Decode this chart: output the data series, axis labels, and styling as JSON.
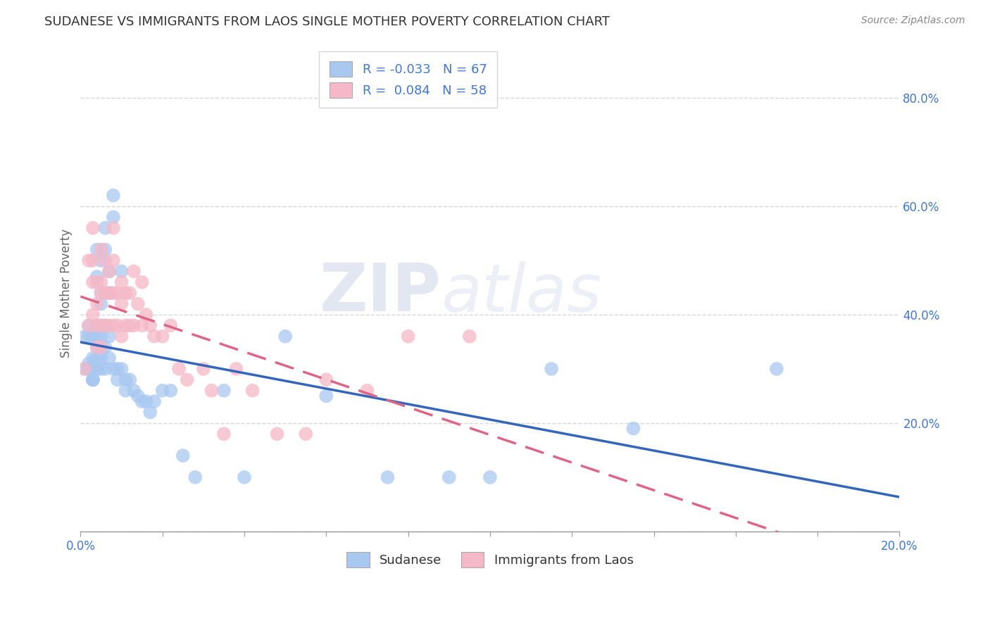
{
  "title": "SUDANESE VS IMMIGRANTS FROM LAOS SINGLE MOTHER POVERTY CORRELATION CHART",
  "source": "Source: ZipAtlas.com",
  "ylabel": "Single Mother Poverty",
  "legend_label_1": "Sudanese",
  "legend_label_2": "Immigrants from Laos",
  "R1": -0.033,
  "N1": 67,
  "R2": 0.084,
  "N2": 58,
  "color_blue": "#a8c8f0",
  "color_pink": "#f4b8c8",
  "color_line_blue": "#3366bb",
  "color_line_pink": "#dd6688",
  "watermark_zip": "ZIP",
  "watermark_atlas": "atlas",
  "background_color": "#ffffff",
  "grid_color": "#cccccc",
  "title_color": "#333333",
  "axis_label_color": "#4477cc",
  "x_min": 0.0,
  "x_max": 0.2,
  "y_min": 0.0,
  "y_max": 0.88,
  "sudanese_x": [
    0.001,
    0.001,
    0.002,
    0.002,
    0.002,
    0.002,
    0.003,
    0.003,
    0.003,
    0.003,
    0.003,
    0.003,
    0.003,
    0.004,
    0.004,
    0.004,
    0.004,
    0.004,
    0.004,
    0.004,
    0.005,
    0.005,
    0.005,
    0.005,
    0.005,
    0.005,
    0.005,
    0.005,
    0.006,
    0.006,
    0.006,
    0.006,
    0.006,
    0.007,
    0.007,
    0.007,
    0.007,
    0.008,
    0.008,
    0.008,
    0.009,
    0.009,
    0.01,
    0.01,
    0.011,
    0.011,
    0.012,
    0.013,
    0.014,
    0.015,
    0.016,
    0.017,
    0.018,
    0.02,
    0.022,
    0.025,
    0.028,
    0.035,
    0.04,
    0.05,
    0.06,
    0.075,
    0.09,
    0.1,
    0.115,
    0.135,
    0.17
  ],
  "sudanese_y": [
    0.36,
    0.3,
    0.38,
    0.3,
    0.36,
    0.31,
    0.36,
    0.32,
    0.3,
    0.28,
    0.28,
    0.3,
    0.28,
    0.52,
    0.47,
    0.38,
    0.36,
    0.34,
    0.32,
    0.3,
    0.5,
    0.44,
    0.42,
    0.38,
    0.36,
    0.34,
    0.32,
    0.3,
    0.56,
    0.52,
    0.38,
    0.34,
    0.3,
    0.48,
    0.44,
    0.36,
    0.32,
    0.62,
    0.58,
    0.3,
    0.3,
    0.28,
    0.48,
    0.3,
    0.28,
    0.26,
    0.28,
    0.26,
    0.25,
    0.24,
    0.24,
    0.22,
    0.24,
    0.26,
    0.26,
    0.14,
    0.1,
    0.26,
    0.1,
    0.36,
    0.25,
    0.1,
    0.1,
    0.1,
    0.3,
    0.19,
    0.3
  ],
  "laos_x": [
    0.001,
    0.002,
    0.002,
    0.003,
    0.003,
    0.003,
    0.003,
    0.004,
    0.004,
    0.004,
    0.004,
    0.005,
    0.005,
    0.005,
    0.005,
    0.005,
    0.006,
    0.006,
    0.006,
    0.007,
    0.007,
    0.007,
    0.008,
    0.008,
    0.008,
    0.008,
    0.009,
    0.009,
    0.01,
    0.01,
    0.01,
    0.011,
    0.011,
    0.012,
    0.012,
    0.013,
    0.013,
    0.014,
    0.015,
    0.015,
    0.016,
    0.017,
    0.018,
    0.02,
    0.022,
    0.024,
    0.026,
    0.03,
    0.032,
    0.035,
    0.038,
    0.042,
    0.048,
    0.055,
    0.06,
    0.07,
    0.08,
    0.095
  ],
  "laos_y": [
    0.3,
    0.5,
    0.38,
    0.56,
    0.5,
    0.46,
    0.4,
    0.46,
    0.42,
    0.38,
    0.34,
    0.52,
    0.46,
    0.44,
    0.38,
    0.34,
    0.5,
    0.44,
    0.38,
    0.48,
    0.44,
    0.38,
    0.56,
    0.5,
    0.44,
    0.38,
    0.44,
    0.38,
    0.46,
    0.42,
    0.36,
    0.44,
    0.38,
    0.44,
    0.38,
    0.48,
    0.38,
    0.42,
    0.46,
    0.38,
    0.4,
    0.38,
    0.36,
    0.36,
    0.38,
    0.3,
    0.28,
    0.3,
    0.26,
    0.18,
    0.3,
    0.26,
    0.18,
    0.18,
    0.28,
    0.26,
    0.36,
    0.36
  ]
}
